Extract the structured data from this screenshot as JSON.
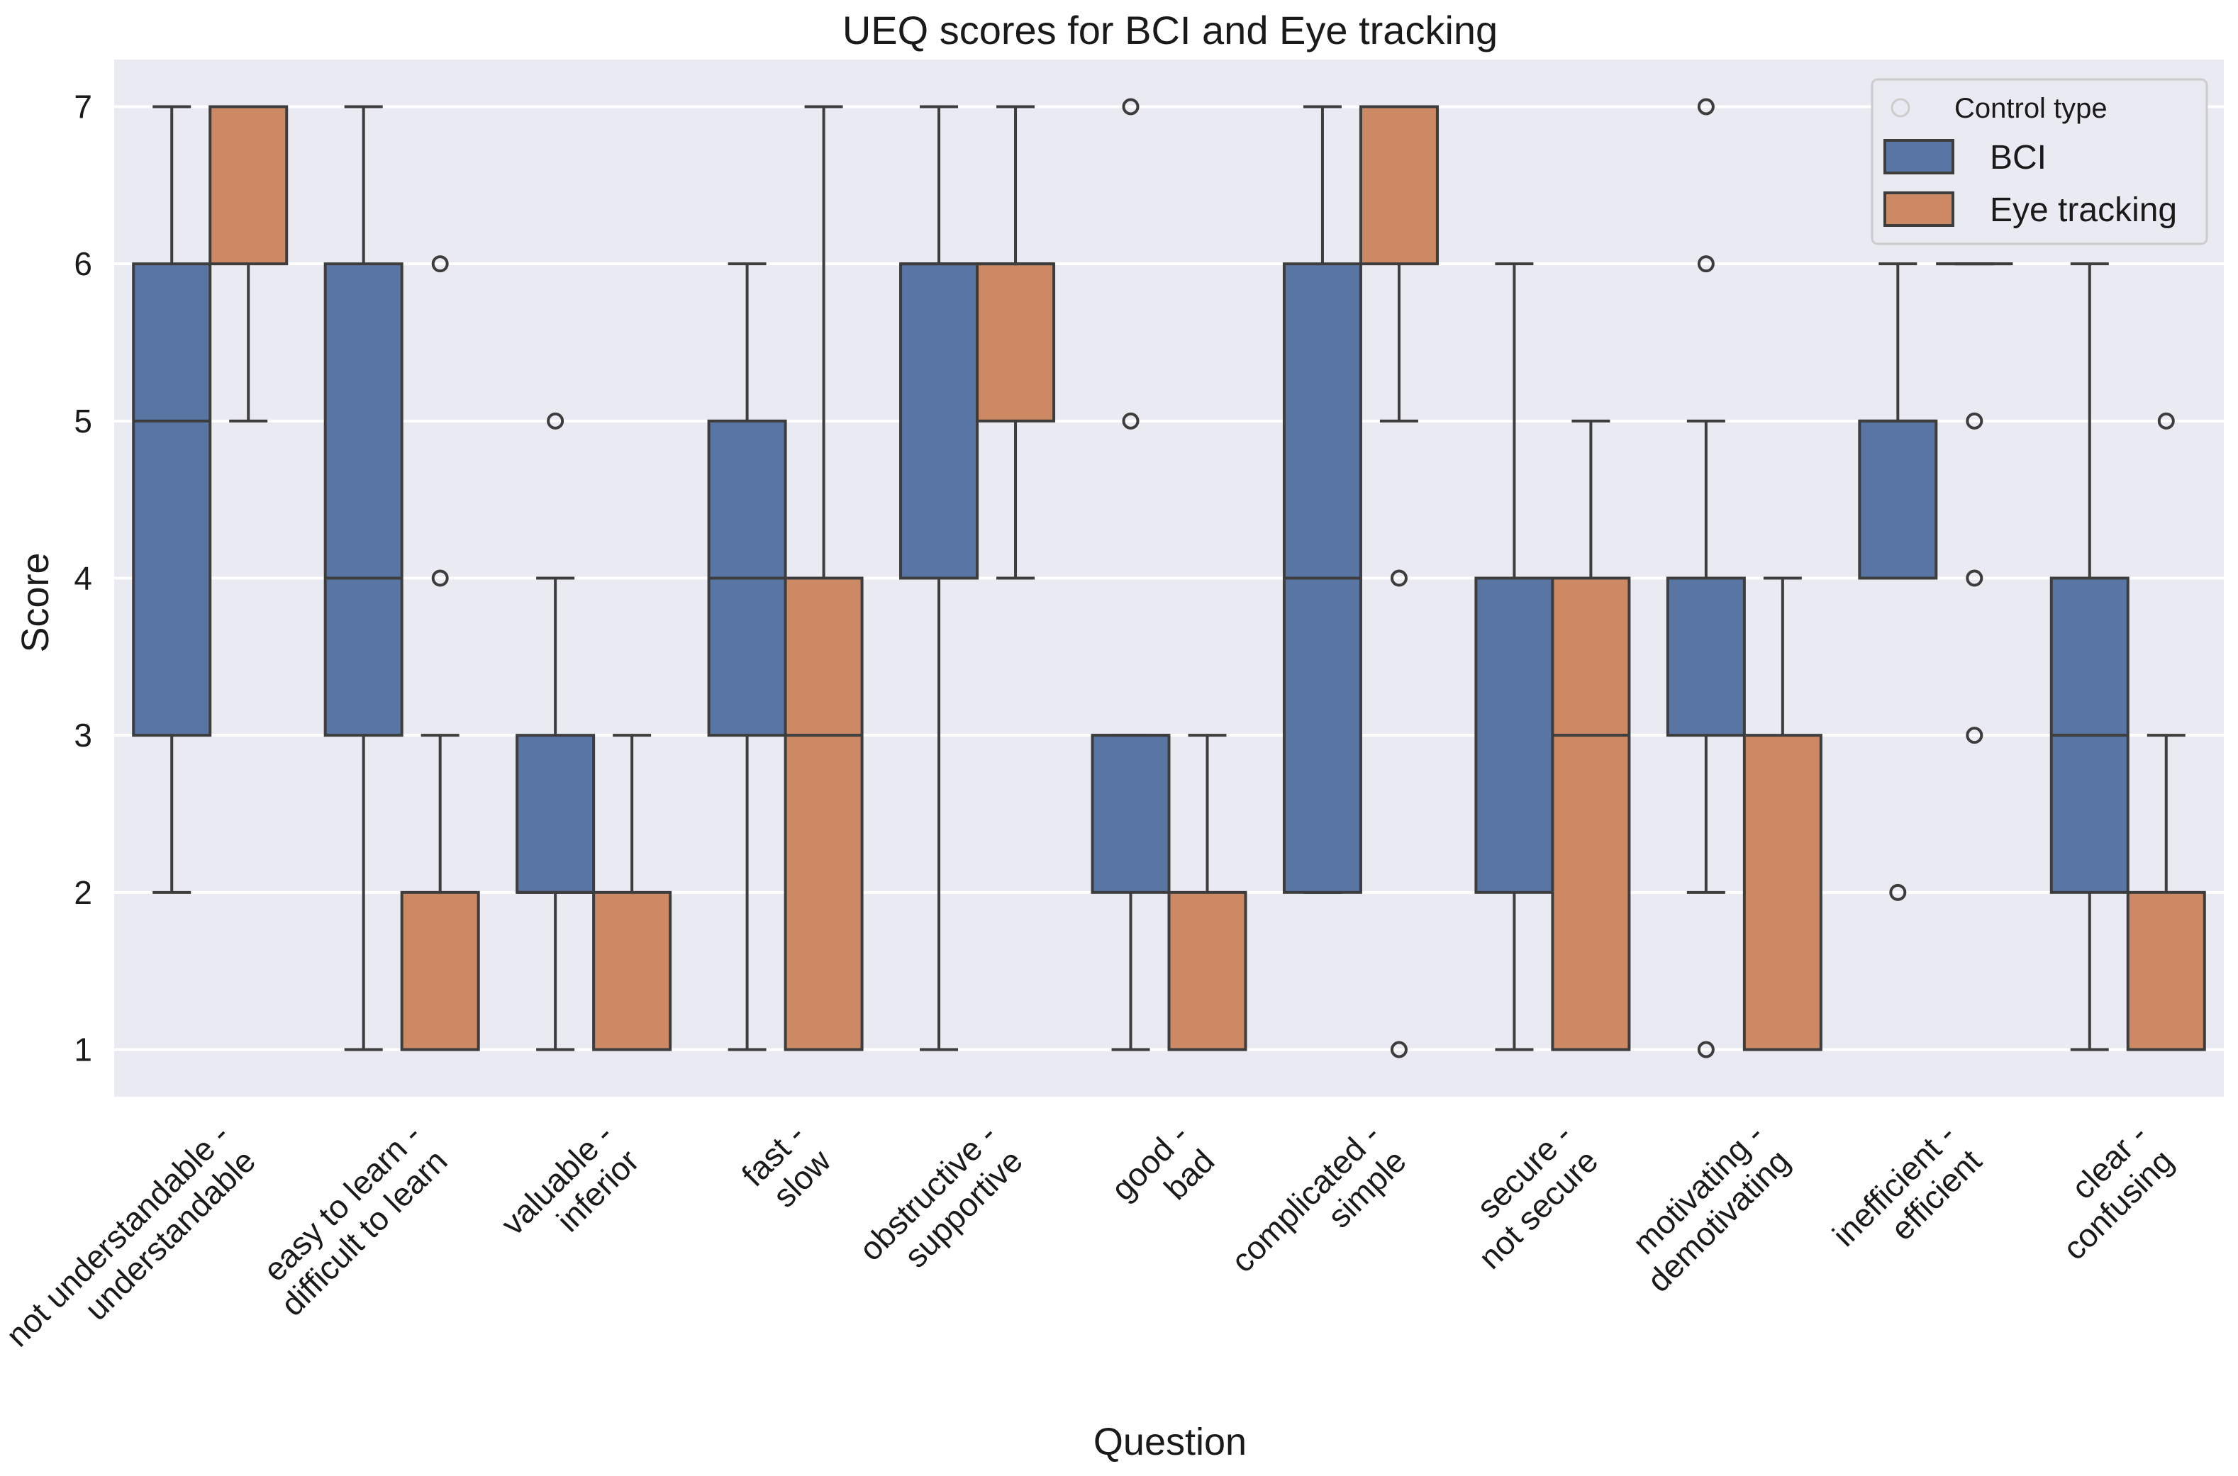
{
  "chart_data": {
    "type": "box",
    "title": "UEQ scores for BCI and Eye tracking",
    "xlabel": "Question",
    "ylabel": "Score",
    "ylim": [
      0.7,
      7.3
    ],
    "yticks": [
      1,
      2,
      3,
      4,
      5,
      6,
      7
    ],
    "grid": true,
    "legend": {
      "title": "Control type",
      "placement": "top-right",
      "entries": [
        "BCI",
        "Eye tracking"
      ]
    },
    "colors": {
      "BCI": "#5975a4",
      "Eye tracking": "#cc8963",
      "background": "#eaeaf2",
      "line": "#3d3d3d",
      "grid": "#ffffff"
    },
    "categories": [
      [
        "not understandable -",
        "understandable"
      ],
      [
        "easy to learn -",
        "difficult to learn"
      ],
      [
        "valuable -",
        "inferior"
      ],
      [
        "fast -",
        "slow"
      ],
      [
        "obstructive -",
        "supportive"
      ],
      [
        "good -",
        "bad"
      ],
      [
        "complicated -",
        "simple"
      ],
      [
        "secure -",
        "not secure"
      ],
      [
        "motivating -",
        "demotivating"
      ],
      [
        "inefficient -",
        "efficient"
      ],
      [
        "clear -",
        "confusing"
      ]
    ],
    "series": [
      {
        "name": "BCI",
        "boxes": [
          {
            "whislo": 2,
            "q1": 3,
            "med": 5,
            "q3": 6,
            "whishi": 7,
            "fliers": []
          },
          {
            "whislo": 1,
            "q1": 3,
            "med": 4,
            "q3": 6,
            "whishi": 7,
            "fliers": []
          },
          {
            "whislo": 1,
            "q1": 2,
            "med": 2,
            "q3": 3,
            "whishi": 4,
            "fliers": [
              5
            ]
          },
          {
            "whislo": 1,
            "q1": 3,
            "med": 4,
            "q3": 5,
            "whishi": 6,
            "fliers": []
          },
          {
            "whislo": 1,
            "q1": 4,
            "med": 6,
            "q3": 6,
            "whishi": 7,
            "fliers": []
          },
          {
            "whislo": 1,
            "q1": 2,
            "med": 3,
            "q3": 3,
            "whishi": 3,
            "fliers": [
              5,
              7
            ]
          },
          {
            "whislo": 2,
            "q1": 2,
            "med": 4,
            "q3": 6,
            "whishi": 7,
            "fliers": []
          },
          {
            "whislo": 1,
            "q1": 2,
            "med": 4,
            "q3": 4,
            "whishi": 6,
            "fliers": []
          },
          {
            "whislo": 2,
            "q1": 3,
            "med": 4,
            "q3": 4,
            "whishi": 5,
            "fliers": [
              1,
              6,
              7
            ]
          },
          {
            "whislo": 4,
            "q1": 4,
            "med": 5,
            "q3": 5,
            "whishi": 6,
            "fliers": [
              2
            ]
          },
          {
            "whislo": 1,
            "q1": 2,
            "med": 3,
            "q3": 4,
            "whishi": 6,
            "fliers": []
          }
        ]
      },
      {
        "name": "Eye tracking",
        "boxes": [
          {
            "whislo": 5,
            "q1": 6,
            "med": 7,
            "q3": 7,
            "whishi": 7,
            "fliers": []
          },
          {
            "whislo": 1,
            "q1": 1,
            "med": 1,
            "q3": 2,
            "whishi": 3,
            "fliers": [
              4,
              6
            ]
          },
          {
            "whislo": 1,
            "q1": 1,
            "med": 1,
            "q3": 2,
            "whishi": 3,
            "fliers": []
          },
          {
            "whislo": 1,
            "q1": 1,
            "med": 3,
            "q3": 4,
            "whishi": 7,
            "fliers": []
          },
          {
            "whislo": 4,
            "q1": 5,
            "med": 6,
            "q3": 6,
            "whishi": 7,
            "fliers": []
          },
          {
            "whislo": 1,
            "q1": 1,
            "med": 1,
            "q3": 2,
            "whishi": 3,
            "fliers": []
          },
          {
            "whislo": 5,
            "q1": 6,
            "med": 7,
            "q3": 7,
            "whishi": 7,
            "fliers": [
              1,
              4
            ]
          },
          {
            "whislo": 1,
            "q1": 1,
            "med": 3,
            "q3": 4,
            "whishi": 5,
            "fliers": []
          },
          {
            "whislo": 1,
            "q1": 1,
            "med": 1,
            "q3": 3,
            "whishi": 4,
            "fliers": []
          },
          {
            "whislo": 6,
            "q1": 6,
            "med": 6,
            "q3": 6,
            "whishi": 6,
            "fliers": [
              3,
              4,
              5
            ]
          },
          {
            "whislo": 1,
            "q1": 1,
            "med": 1,
            "q3": 2,
            "whishi": 3,
            "fliers": [
              5
            ]
          }
        ]
      }
    ]
  }
}
